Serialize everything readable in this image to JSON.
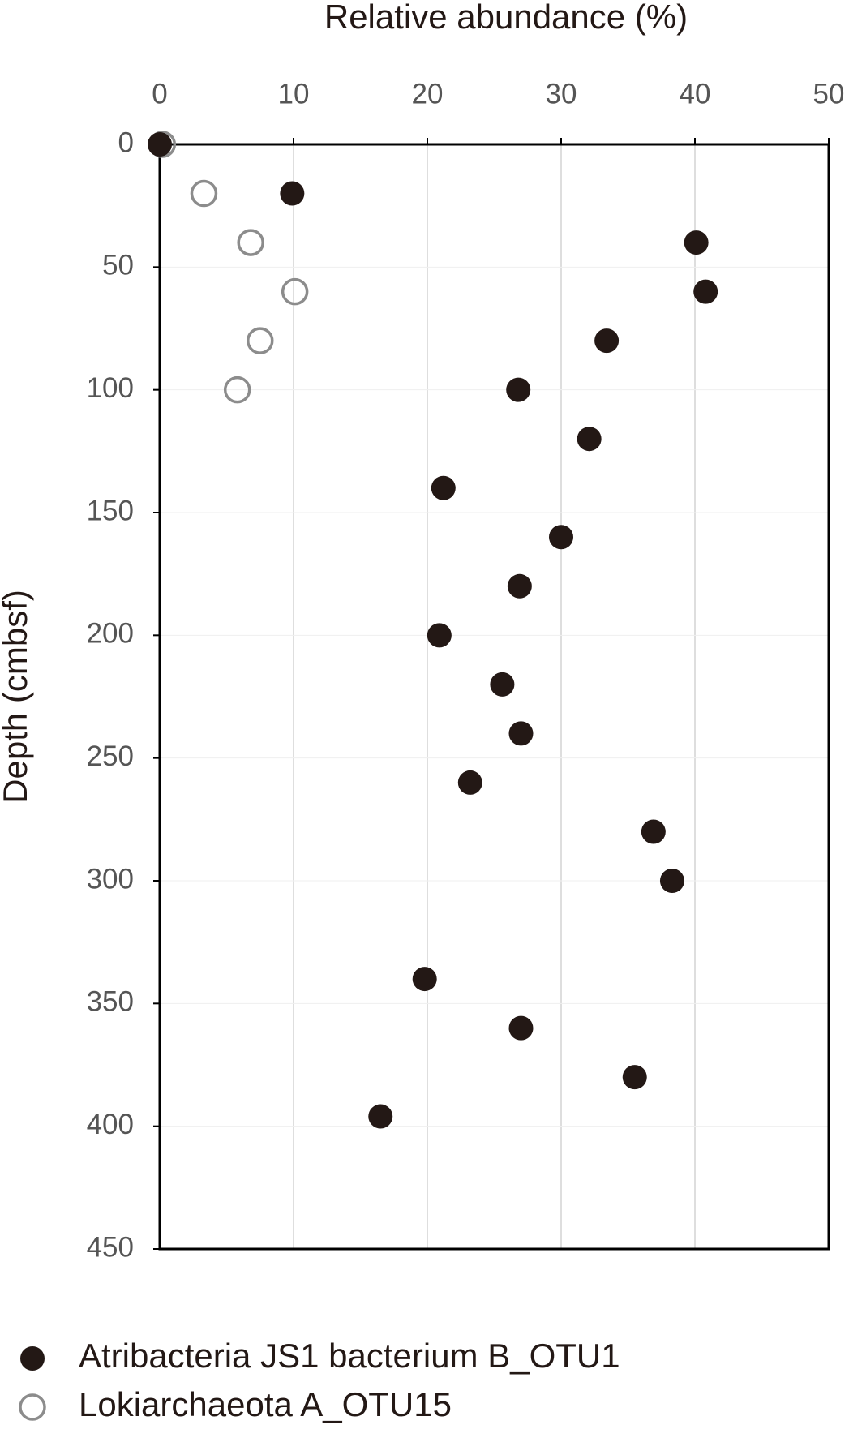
{
  "chart_data": {
    "type": "scatter",
    "x_label": "Relative abundance (%)",
    "y_label": "Depth (cmbsf)",
    "xlim": [
      0,
      50
    ],
    "xticks": [
      0,
      10,
      20,
      30,
      40,
      50
    ],
    "ylim": [
      0,
      450
    ],
    "yticks": [
      0,
      50,
      100,
      150,
      200,
      250,
      300,
      350,
      400,
      450
    ],
    "y_inverted": true,
    "x_axis_position": "top",
    "grid": true,
    "legend": "bottom-left",
    "series": [
      {
        "name": "Atribacteria JS1 bacterium B_OTU1",
        "color": "#231815",
        "filled": true,
        "x": [
          0,
          9.9,
          40.1,
          40.8,
          33.4,
          26.8,
          32.1,
          21.2,
          30.0,
          26.9,
          20.9,
          25.6,
          27.0,
          23.2,
          36.9,
          38.3,
          19.8,
          27.0,
          35.5,
          16.5
        ],
        "y": [
          0,
          20,
          40,
          60,
          80,
          100,
          120,
          140,
          160,
          180,
          200,
          220,
          240,
          260,
          280,
          300,
          340,
          360,
          380,
          396
        ]
      },
      {
        "name": "Lokiarchaeota A_OTU15",
        "color": "#8c8c8c",
        "filled": false,
        "x": [
          0.2,
          3.3,
          6.8,
          10.1,
          7.5,
          5.8
        ],
        "y": [
          0,
          20,
          40,
          60,
          80,
          100
        ]
      }
    ]
  }
}
